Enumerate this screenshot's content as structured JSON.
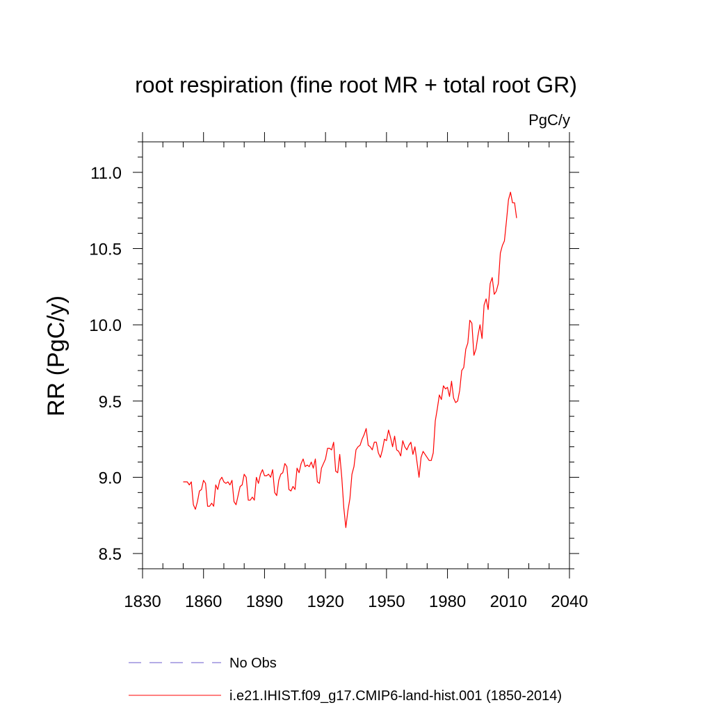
{
  "chart_data": {
    "type": "line",
    "title": "root respiration (fine root MR + total root GR)",
    "units": "PgC/y",
    "ylabel": "RR  (PgC/y)",
    "xlabel": "",
    "xlim": [
      1830,
      2040
    ],
    "ylim": [
      8.4,
      11.2
    ],
    "x_ticks": [
      1830,
      1860,
      1890,
      1920,
      1950,
      1980,
      2010,
      2040
    ],
    "x_tick_labels": [
      "1830",
      "1860",
      "1890",
      "1920",
      "1950",
      "1980",
      "2010",
      "2040"
    ],
    "y_ticks": [
      8.5,
      9.0,
      9.5,
      10.0,
      10.5,
      11.0
    ],
    "y_tick_labels": [
      "8.5",
      "9.0",
      "9.5",
      "10.0",
      "10.5",
      "11.0"
    ],
    "grid": false,
    "legend_position": "bottom",
    "legend": [
      {
        "label": "No Obs",
        "color": "#6a5acd",
        "style": "dashed"
      },
      {
        "label": "i.e21.IHIST.f09_g17.CMIP6-land-hist.001 (1850-2014)",
        "color": "#ff0000",
        "style": "solid"
      }
    ],
    "series": [
      {
        "name": "i.e21.IHIST.f09_g17.CMIP6-land-hist.001 (1850-2014)",
        "color": "#ff0000",
        "x": [
          1850,
          1851,
          1852,
          1853,
          1854,
          1855,
          1856,
          1857,
          1858,
          1859,
          1860,
          1861,
          1862,
          1863,
          1864,
          1865,
          1866,
          1867,
          1868,
          1869,
          1870,
          1871,
          1872,
          1873,
          1874,
          1875,
          1876,
          1877,
          1878,
          1879,
          1880,
          1881,
          1882,
          1883,
          1884,
          1885,
          1886,
          1887,
          1888,
          1889,
          1890,
          1891,
          1892,
          1893,
          1894,
          1895,
          1896,
          1897,
          1898,
          1899,
          1900,
          1901,
          1902,
          1903,
          1904,
          1905,
          1906,
          1907,
          1908,
          1909,
          1910,
          1911,
          1912,
          1913,
          1914,
          1915,
          1916,
          1917,
          1918,
          1919,
          1920,
          1921,
          1922,
          1923,
          1924,
          1925,
          1926,
          1927,
          1928,
          1929,
          1930,
          1931,
          1932,
          1933,
          1934,
          1935,
          1936,
          1937,
          1938,
          1939,
          1940,
          1941,
          1942,
          1943,
          1944,
          1945,
          1946,
          1947,
          1948,
          1949,
          1950,
          1951,
          1952,
          1953,
          1954,
          1955,
          1956,
          1957,
          1958,
          1959,
          1960,
          1961,
          1962,
          1963,
          1964,
          1965,
          1966,
          1967,
          1968,
          1969,
          1970,
          1971,
          1972,
          1973,
          1974,
          1975,
          1976,
          1977,
          1978,
          1979,
          1980,
          1981,
          1982,
          1983,
          1984,
          1985,
          1986,
          1987,
          1988,
          1989,
          1990,
          1991,
          1992,
          1993,
          1994,
          1995,
          1996,
          1997,
          1998,
          1999,
          2000,
          2001,
          2002,
          2003,
          2004,
          2005,
          2006,
          2007,
          2008,
          2009,
          2010,
          2011,
          2012,
          2013,
          2014
        ],
        "y": [
          8.97,
          8.97,
          8.97,
          8.95,
          8.97,
          8.82,
          8.79,
          8.84,
          8.91,
          8.92,
          8.98,
          8.96,
          8.81,
          8.81,
          8.83,
          8.81,
          8.95,
          8.92,
          8.98,
          9.0,
          8.97,
          8.96,
          8.97,
          8.95,
          8.98,
          8.84,
          8.82,
          8.88,
          8.94,
          8.95,
          9.02,
          9.0,
          8.85,
          8.85,
          8.87,
          8.85,
          9.0,
          8.96,
          9.02,
          9.05,
          9.01,
          9.01,
          9.02,
          9.0,
          9.05,
          8.9,
          8.88,
          8.98,
          9.02,
          9.03,
          9.09,
          9.07,
          8.92,
          8.91,
          8.94,
          8.92,
          9.06,
          9.03,
          9.09,
          9.12,
          9.07,
          9.08,
          9.07,
          9.1,
          9.06,
          9.12,
          8.97,
          8.96,
          9.06,
          9.09,
          9.12,
          9.19,
          9.19,
          9.18,
          9.23,
          9.04,
          9.03,
          9.15,
          9.0,
          8.8,
          8.67,
          8.78,
          8.86,
          9.02,
          9.07,
          9.18,
          9.2,
          9.21,
          9.25,
          9.28,
          9.32,
          9.21,
          9.2,
          9.18,
          9.23,
          9.23,
          9.16,
          9.13,
          9.18,
          9.25,
          9.24,
          9.31,
          9.26,
          9.2,
          9.27,
          9.18,
          9.17,
          9.14,
          9.24,
          9.2,
          9.18,
          9.21,
          9.23,
          9.15,
          9.2,
          9.1,
          9.0,
          9.13,
          9.17,
          9.15,
          9.13,
          9.11,
          9.11,
          9.16,
          9.37,
          9.45,
          9.54,
          9.51,
          9.6,
          9.58,
          9.59,
          9.53,
          9.63,
          9.52,
          9.49,
          9.5,
          9.57,
          9.7,
          9.72,
          9.84,
          9.88,
          10.03,
          10.01,
          9.8,
          9.84,
          9.93,
          10.0,
          9.91,
          10.13,
          10.17,
          10.1,
          10.27,
          10.31,
          10.2,
          10.22,
          10.27,
          10.47,
          10.52,
          10.55,
          10.68,
          10.82,
          10.87,
          10.8,
          10.8,
          10.7
        ]
      }
    ]
  }
}
